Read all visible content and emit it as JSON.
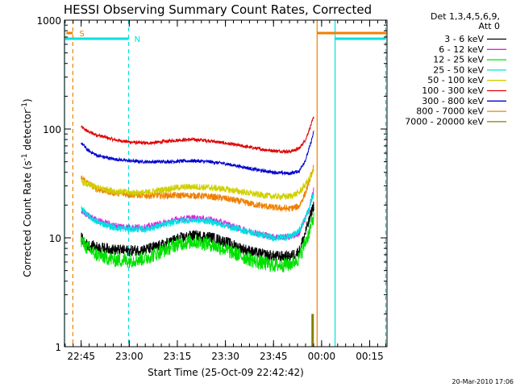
{
  "chart_data": {
    "type": "line",
    "title": "HESSI Observing Summary Count Rates, Corrected",
    "xlabel": "Start Time (25-Oct-09 22:42:42)",
    "ylabel_main": "Corrected Count Rate (s",
    "ylabel_sup1": "-1",
    "ylabel_mid": " detector",
    "ylabel_sup2": "-1",
    "ylabel_end": ")",
    "yscale": "log",
    "ylim": [
      1,
      1000
    ],
    "xlim_minutes": [
      -5.2,
      95.4
    ],
    "x_ticks": [
      {
        "label": "22:45",
        "minutes": 0
      },
      {
        "label": "23:00",
        "minutes": 15
      },
      {
        "label": "23:15",
        "minutes": 30
      },
      {
        "label": "23:30",
        "minutes": 45
      },
      {
        "label": "23:45",
        "minutes": 60
      },
      {
        "label": "00:00",
        "minutes": 75
      },
      {
        "label": "00:15",
        "minutes": 90
      }
    ],
    "y_ticks": [
      {
        "label": "1",
        "value": 1
      },
      {
        "label": "10",
        "value": 10
      },
      {
        "label": "100",
        "value": 100
      },
      {
        "label": "1000",
        "value": 1000
      }
    ],
    "legend_header": [
      "Det 1,3,4,5,6,9,",
      "Att 0"
    ],
    "series": [
      {
        "name": "3 - 6 keV",
        "color": "#000000",
        "points": [
          [
            0,
            10
          ],
          [
            2,
            8.5
          ],
          [
            5,
            8.2
          ],
          [
            10,
            7.8
          ],
          [
            15,
            7.6
          ],
          [
            20,
            7.8
          ],
          [
            25,
            8.5
          ],
          [
            30,
            9.8
          ],
          [
            35,
            10.5
          ],
          [
            40,
            10.2
          ],
          [
            45,
            9.2
          ],
          [
            50,
            8
          ],
          [
            55,
            7.2
          ],
          [
            60,
            6.8
          ],
          [
            65,
            6.7
          ],
          [
            68,
            7.5
          ],
          [
            71,
            14
          ],
          [
            72,
            18
          ],
          [
            72.6,
            20
          ]
        ]
      },
      {
        "name": "6 - 12 keV",
        "color": "#e020e0",
        "points": [
          [
            0,
            18
          ],
          [
            2,
            16
          ],
          [
            5,
            14.5
          ],
          [
            10,
            13
          ],
          [
            15,
            12.5
          ],
          [
            20,
            12.5
          ],
          [
            25,
            13.5
          ],
          [
            30,
            14.8
          ],
          [
            35,
            15.2
          ],
          [
            40,
            14.8
          ],
          [
            45,
            13.5
          ],
          [
            50,
            12
          ],
          [
            55,
            11
          ],
          [
            60,
            10.2
          ],
          [
            65,
            10.2
          ],
          [
            68,
            11
          ],
          [
            71,
            18
          ],
          [
            72,
            24
          ],
          [
            72.6,
            28
          ]
        ]
      },
      {
        "name": "12 - 25 keV",
        "color": "#00e000",
        "points": [
          [
            0,
            9.5
          ],
          [
            2,
            8
          ],
          [
            5,
            7
          ],
          [
            10,
            6.3
          ],
          [
            15,
            6.2
          ],
          [
            20,
            6.5
          ],
          [
            25,
            7.5
          ],
          [
            30,
            8.8
          ],
          [
            35,
            9.3
          ],
          [
            40,
            8.8
          ],
          [
            45,
            7.8
          ],
          [
            50,
            6.8
          ],
          [
            55,
            6
          ],
          [
            60,
            5.6
          ],
          [
            65,
            5.7
          ],
          [
            68,
            6.5
          ],
          [
            71,
            11
          ],
          [
            72,
            14
          ],
          [
            72.6,
            16
          ]
        ]
      },
      {
        "name": "25 - 50 keV",
        "color": "#00e0e0",
        "points": [
          [
            0,
            19
          ],
          [
            2,
            16
          ],
          [
            5,
            14
          ],
          [
            10,
            12.5
          ],
          [
            15,
            12
          ],
          [
            20,
            12
          ],
          [
            25,
            13
          ],
          [
            30,
            14.2
          ],
          [
            35,
            14.6
          ],
          [
            40,
            14.2
          ],
          [
            45,
            13
          ],
          [
            50,
            11.8
          ],
          [
            55,
            10.8
          ],
          [
            60,
            10
          ],
          [
            65,
            10.2
          ],
          [
            68,
            11.5
          ],
          [
            71,
            18
          ],
          [
            72,
            23
          ],
          [
            72.6,
            26
          ]
        ]
      },
      {
        "name": "50 - 100 keV",
        "color": "#d0d000",
        "points": [
          [
            0,
            33
          ],
          [
            2,
            31
          ],
          [
            5,
            29
          ],
          [
            10,
            27
          ],
          [
            15,
            26
          ],
          [
            20,
            26
          ],
          [
            25,
            27.5
          ],
          [
            30,
            29
          ],
          [
            35,
            29.5
          ],
          [
            40,
            29
          ],
          [
            45,
            28
          ],
          [
            50,
            26.5
          ],
          [
            55,
            25
          ],
          [
            60,
            24
          ],
          [
            65,
            24
          ],
          [
            68,
            26
          ],
          [
            71,
            34
          ],
          [
            72,
            38
          ],
          [
            72.6,
            42
          ]
        ]
      },
      {
        "name": "100 - 300 keV",
        "color": "#e00000",
        "points": [
          [
            0,
            105
          ],
          [
            2,
            95
          ],
          [
            5,
            88
          ],
          [
            10,
            80
          ],
          [
            15,
            76
          ],
          [
            20,
            74
          ],
          [
            25,
            76
          ],
          [
            30,
            79
          ],
          [
            35,
            80
          ],
          [
            40,
            78
          ],
          [
            45,
            74
          ],
          [
            50,
            70
          ],
          [
            55,
            66
          ],
          [
            60,
            63
          ],
          [
            65,
            62
          ],
          [
            68,
            66
          ],
          [
            70,
            80
          ],
          [
            71.5,
            105
          ],
          [
            72.6,
            130
          ]
        ]
      },
      {
        "name": "300 - 800 keV",
        "color": "#0000d0",
        "points": [
          [
            0,
            75
          ],
          [
            2,
            64
          ],
          [
            5,
            57
          ],
          [
            10,
            53
          ],
          [
            15,
            51
          ],
          [
            20,
            50
          ],
          [
            25,
            50
          ],
          [
            30,
            50.5
          ],
          [
            35,
            51
          ],
          [
            40,
            50
          ],
          [
            45,
            48
          ],
          [
            50,
            45
          ],
          [
            55,
            42
          ],
          [
            60,
            40
          ],
          [
            65,
            39
          ],
          [
            68,
            41
          ],
          [
            70,
            52
          ],
          [
            71.5,
            72
          ],
          [
            72.6,
            95
          ]
        ]
      },
      {
        "name": "800 - 7000 keV",
        "color": "#f08000",
        "points": [
          [
            0,
            36
          ],
          [
            2,
            32
          ],
          [
            5,
            28
          ],
          [
            10,
            26
          ],
          [
            15,
            25
          ],
          [
            20,
            24.5
          ],
          [
            25,
            24.5
          ],
          [
            30,
            24.5
          ],
          [
            35,
            24.5
          ],
          [
            40,
            24
          ],
          [
            45,
            23
          ],
          [
            50,
            21.5
          ],
          [
            55,
            20
          ],
          [
            60,
            19
          ],
          [
            65,
            18.5
          ],
          [
            68,
            19.5
          ],
          [
            70,
            26
          ],
          [
            71.5,
            36
          ],
          [
            72.6,
            45
          ]
        ]
      },
      {
        "name": "7000 - 20000 keV",
        "color": "#808000",
        "bar": {
          "minutes": 72.2,
          "value": 2
        }
      }
    ],
    "flags": {
      "saa": {
        "label": "S",
        "color": "#f08000",
        "spans_minutes": [
          [
            -4.6,
            -2.6
          ],
          [
            73.6,
            95.2
          ]
        ]
      },
      "night": {
        "label": "N",
        "color": "#00e0e0",
        "spans_minutes": [
          [
            -5.0,
            14.8
          ],
          [
            79.2,
            95.0
          ]
        ]
      }
    },
    "orbit_lines": [
      {
        "type": "cyan-solid",
        "minutes": -5.2
      },
      {
        "type": "orange-dashed",
        "minutes": -2.6
      },
      {
        "type": "cyan-dashed",
        "minutes": 14.8
      },
      {
        "type": "orange-solid",
        "minutes": 73.6
      },
      {
        "type": "cyan-solid",
        "minutes": 79.2
      },
      {
        "type": "cyan-dashed",
        "minutes": 95.0
      }
    ],
    "footer_date": "20-Mar-2010 17:06"
  }
}
